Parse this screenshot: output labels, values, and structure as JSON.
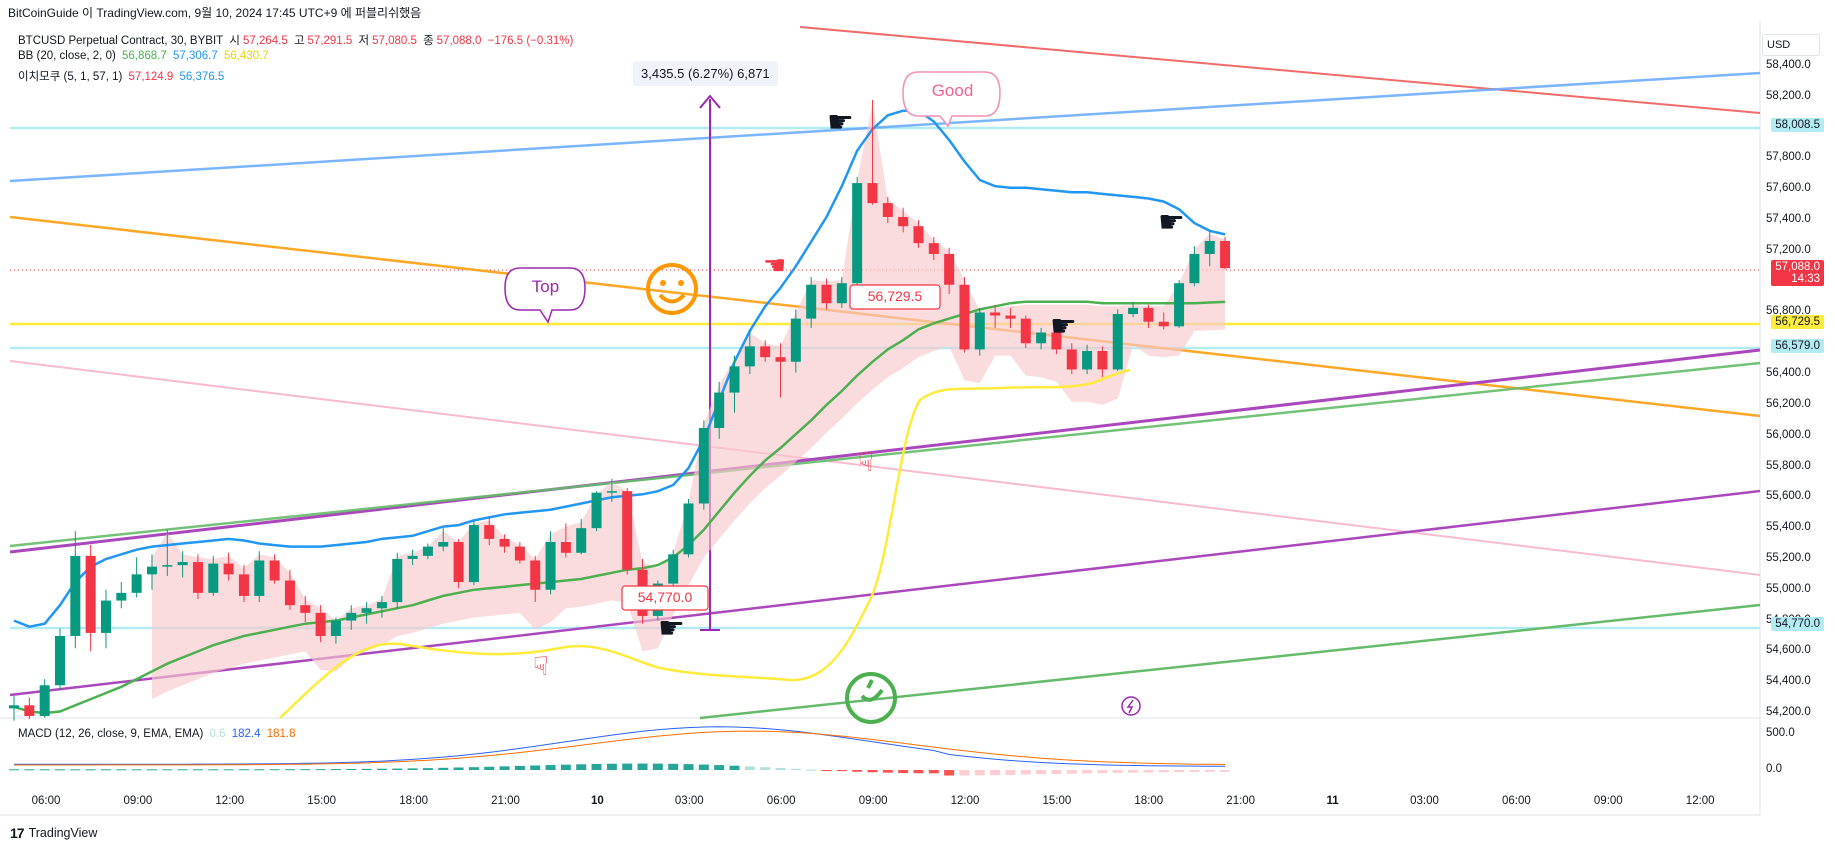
{
  "header": {
    "caption": "BitCoinGuide 이 TradingView.com, 9월 10, 2024 17:45 UTC+9 에 퍼블리쉬했음"
  },
  "legend": {
    "symbol": "BTCUSD Perpetual Contract, 30, BYBIT",
    "o_label": "시",
    "o_value": "57,264.5",
    "h_label": "고",
    "h_value": "57,291.5",
    "l_label": "저",
    "l_value": "57,080.5",
    "c_label": "종",
    "c_value": "57,088.0",
    "change": "−176.5 (−0.31%)",
    "bb_label": "BB (20, close, 2, 0)",
    "bb_basis": "56,868.7",
    "bb_upper": "57,306.7",
    "bb_lower": "56,430.7",
    "ichimoku_label": "이치모쿠 (5, 1, 57, 1)",
    "ichi_a": "57,124.9",
    "ichi_b": "56,376.5"
  },
  "macd": {
    "label": "MACD (12, 26, close, 9, EMA, EMA)",
    "v1": "0.6",
    "v2": "182.4",
    "v3": "181.8",
    "axis": [
      "500.0",
      "0.0"
    ]
  },
  "price_axis": {
    "unit_button": "USD",
    "ticks": [
      "58,400.0",
      "58,200.0",
      "57,800.0",
      "57,600.0",
      "57,400.0",
      "57,200.0",
      "56,800.0",
      "56,400.0",
      "56,200.0",
      "56,000.0",
      "55,800.0",
      "55,600.0",
      "55,400.0",
      "55,200.0",
      "55,000.0",
      "54,800.0",
      "54,600.0",
      "54,400.0",
      "54,200.0"
    ],
    "badges": [
      {
        "label": "58,008.5",
        "bg": "#b2ebf2",
        "color": "#131722"
      },
      {
        "label": "57,088.0",
        "sub": "14:33",
        "bg": "#f23645",
        "color": "#ffffff"
      },
      {
        "label": "56,729.5",
        "bg": "#ffeb3b",
        "color": "#131722"
      },
      {
        "label": "56,579.0",
        "bg": "#b2ebf2",
        "color": "#131722"
      },
      {
        "label": "54,770.0",
        "bg": "#b2ebf2",
        "color": "#131722"
      }
    ]
  },
  "time_axis": {
    "ticks": [
      "06:00",
      "09:00",
      "12:00",
      "15:00",
      "18:00",
      "21:00",
      "10",
      "03:00",
      "06:00",
      "09:00",
      "12:00",
      "15:00",
      "18:00",
      "21:00",
      "11",
      "03:00",
      "06:00",
      "09:00",
      "12:00"
    ]
  },
  "annotations": {
    "measure": "3,435.5 (6.27%) 6,871",
    "low_label": "54,770.0",
    "mid_label": "56,729.5",
    "top_bubble": "Top",
    "good_bubble": "Good"
  },
  "footer": {
    "brand": "TradingView",
    "logo": "17"
  },
  "colors": {
    "up": "#089981",
    "down": "#f23645",
    "bb_upper": "#2196f3",
    "bb_basis": "#4caf50",
    "bb_lower": "#ffeb3b",
    "cloud": "#f8c8cc"
  },
  "chart_data": {
    "type": "candlestick",
    "symbol": "BTCUSD Perpetual Contract",
    "timeframe": "30",
    "ylim": [
      54100,
      58600
    ],
    "candles": [
      [
        54230,
        54310,
        54150,
        54250
      ],
      [
        54250,
        54300,
        54160,
        54180
      ],
      [
        54180,
        54420,
        54170,
        54380
      ],
      [
        54380,
        54750,
        54350,
        54700
      ],
      [
        54700,
        55380,
        54620,
        55220
      ],
      [
        55220,
        55290,
        54600,
        54720
      ],
      [
        54720,
        55000,
        54620,
        54930
      ],
      [
        54930,
        55050,
        54880,
        54980
      ],
      [
        54980,
        55210,
        54950,
        55100
      ],
      [
        55100,
        55230,
        55000,
        55150
      ],
      [
        55150,
        55390,
        55090,
        55160
      ],
      [
        55160,
        55250,
        55080,
        55180
      ],
      [
        55180,
        55230,
        54940,
        54980
      ],
      [
        54980,
        55220,
        54960,
        55170
      ],
      [
        55170,
        55240,
        55060,
        55100
      ],
      [
        55100,
        55160,
        54920,
        54960
      ],
      [
        54960,
        55250,
        54920,
        55190
      ],
      [
        55190,
        55230,
        55040,
        55060
      ],
      [
        55060,
        55130,
        54870,
        54900
      ],
      [
        54900,
        54960,
        54790,
        54850
      ],
      [
        54850,
        54900,
        54660,
        54700
      ],
      [
        54700,
        54820,
        54650,
        54800
      ],
      [
        54800,
        54900,
        54740,
        54850
      ],
      [
        54850,
        54920,
        54780,
        54880
      ],
      [
        54880,
        54960,
        54820,
        54920
      ],
      [
        54920,
        55240,
        54880,
        55200
      ],
      [
        55200,
        55260,
        55160,
        55220
      ],
      [
        55220,
        55300,
        55200,
        55280
      ],
      [
        55280,
        55400,
        55250,
        55310
      ],
      [
        55310,
        55330,
        55010,
        55050
      ],
      [
        55050,
        55450,
        55030,
        55420
      ],
      [
        55420,
        55470,
        55290,
        55330
      ],
      [
        55330,
        55360,
        55240,
        55280
      ],
      [
        55280,
        55310,
        55170,
        55190
      ],
      [
        55190,
        55220,
        54920,
        55000
      ],
      [
        55000,
        55380,
        54970,
        55310
      ],
      [
        55310,
        55430,
        55210,
        55240
      ],
      [
        55240,
        55460,
        55230,
        55400
      ],
      [
        55400,
        55640,
        55380,
        55630
      ],
      [
        55630,
        55720,
        55570,
        55640
      ],
      [
        55640,
        55660,
        55100,
        55130
      ],
      [
        55130,
        55200,
        54780,
        54830
      ],
      [
        54830,
        55060,
        54800,
        55040
      ],
      [
        55040,
        55260,
        55020,
        55230
      ],
      [
        55230,
        55590,
        55210,
        55560
      ],
      [
        55560,
        56100,
        55520,
        56050
      ],
      [
        56050,
        56350,
        55980,
        56280
      ],
      [
        56280,
        56520,
        56150,
        56450
      ],
      [
        56450,
        56690,
        56400,
        56580
      ],
      [
        56580,
        56620,
        56480,
        56510
      ],
      [
        56510,
        56600,
        56250,
        56480
      ],
      [
        56480,
        56820,
        56410,
        56760
      ],
      [
        56760,
        57030,
        56700,
        56980
      ],
      [
        56980,
        57020,
        56820,
        56860
      ],
      [
        56860,
        57030,
        56830,
        56990
      ],
      [
        56990,
        57680,
        56900,
        57640
      ],
      [
        57640,
        58180,
        57500,
        57510
      ],
      [
        57510,
        57550,
        57380,
        57420
      ],
      [
        57420,
        57480,
        57320,
        57360
      ],
      [
        57360,
        57400,
        57220,
        57250
      ],
      [
        57250,
        57290,
        57140,
        57180
      ],
      [
        57180,
        57220,
        56920,
        56980
      ],
      [
        56980,
        57030,
        56540,
        56560
      ],
      [
        56560,
        56830,
        56520,
        56800
      ],
      [
        56800,
        56850,
        56700,
        56780
      ],
      [
        56780,
        56830,
        56700,
        56760
      ],
      [
        56760,
        56780,
        56570,
        56600
      ],
      [
        56600,
        56700,
        56560,
        56670
      ],
      [
        56670,
        56700,
        56530,
        56560
      ],
      [
        56560,
        56600,
        56400,
        56430
      ],
      [
        56430,
        56590,
        56400,
        56550
      ],
      [
        56550,
        56580,
        56380,
        56430
      ],
      [
        56430,
        56820,
        56420,
        56790
      ],
      [
        56790,
        56870,
        56770,
        56830
      ],
      [
        56830,
        56850,
        56700,
        56740
      ],
      [
        56740,
        56800,
        56690,
        56710
      ],
      [
        56710,
        57010,
        56700,
        56990
      ],
      [
        56990,
        57230,
        56970,
        57180
      ],
      [
        57180,
        57330,
        57100,
        57264.5
      ],
      [
        57264.5,
        57291.5,
        57080.5,
        57088
      ]
    ],
    "bb_upper": [
      54800,
      54760,
      54780,
      54900,
      55050,
      55150,
      55200,
      55230,
      55260,
      55280,
      55290,
      55300,
      55310,
      55320,
      55330,
      55320,
      55300,
      55290,
      55280,
      55280,
      55280,
      55290,
      55300,
      55310,
      55330,
      55340,
      55350,
      55380,
      55410,
      55420,
      55450,
      55470,
      55490,
      55500,
      55510,
      55520,
      55540,
      55560,
      55580,
      55600,
      55610,
      55620,
      55640,
      55680,
      55790,
      55980,
      56230,
      56480,
      56680,
      56840,
      56960,
      57100,
      57260,
      57420,
      57620,
      57850,
      57990,
      58080,
      58110,
      58110,
      58040,
      57920,
      57780,
      57660,
      57620,
      57610,
      57610,
      57600,
      57590,
      57580,
      57580,
      57570,
      57560,
      57550,
      57540,
      57520,
      57470,
      57380,
      57330,
      57306.7
    ],
    "bb_basis": [
      54240,
      54210,
      54200,
      54210,
      54250,
      54290,
      54330,
      54370,
      54420,
      54470,
      54520,
      54560,
      54600,
      54640,
      54670,
      54700,
      54720,
      54740,
      54760,
      54780,
      54790,
      54800,
      54820,
      54840,
      54860,
      54880,
      54900,
      54930,
      54960,
      54980,
      55000,
      55010,
      55020,
      55030,
      55040,
      55050,
      55060,
      55070,
      55090,
      55110,
      55130,
      55140,
      55160,
      55210,
      55290,
      55390,
      55510,
      55630,
      55740,
      55840,
      55920,
      56010,
      56100,
      56200,
      56290,
      56390,
      56480,
      56560,
      56620,
      56690,
      56730,
      56760,
      56790,
      56820,
      56840,
      56860,
      56870,
      56870,
      56870,
      56870,
      56870,
      56860,
      56860,
      56860,
      56860,
      56860,
      56860,
      56860,
      56865,
      56868.7
    ]
  }
}
